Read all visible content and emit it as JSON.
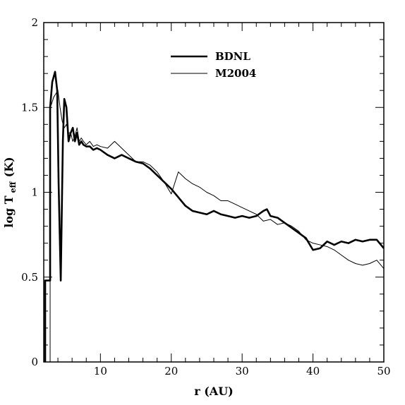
{
  "chart_data": {
    "type": "line",
    "title": "",
    "xlabel": "r (AU)",
    "ylabel_main": "log T",
    "ylabel_sub": "eff",
    "ylabel_unit": "(K)",
    "xlim": [
      2,
      50
    ],
    "ylim": [
      0,
      2
    ],
    "x_ticks": [
      10,
      20,
      30,
      40,
      50
    ],
    "y_ticks": [
      0,
      0.5,
      1,
      1.5,
      2
    ],
    "y_tick_labels": [
      "0",
      "0.5",
      "1",
      "1.5",
      "2"
    ],
    "x_minor_step": 2,
    "y_minor_step": 0.1,
    "grid": false,
    "legend_position": "top-center",
    "series": [
      {
        "name": "BDNL",
        "color": "#000000",
        "weight": "thick",
        "x": [
          2.0,
          2.2,
          2.2,
          2.9,
          2.9,
          3.2,
          3.6,
          3.9,
          4.1,
          4.4,
          4.7,
          4.9,
          5.2,
          5.5,
          5.8,
          6.1,
          6.4,
          6.7,
          7.0,
          7.3,
          7.6,
          8.0,
          8.5,
          9.0,
          9.5,
          10,
          11,
          12,
          13,
          14,
          15,
          16,
          17,
          18,
          19,
          20,
          21,
          22,
          23,
          24,
          25,
          26,
          27,
          28,
          29,
          30,
          31,
          32,
          33,
          33.5,
          34,
          35,
          36,
          37,
          38,
          39,
          40,
          41,
          42,
          43,
          44,
          45,
          46,
          47,
          48,
          49,
          50
        ],
        "y": [
          0.0,
          0.0,
          0.48,
          0.48,
          1.5,
          1.65,
          1.71,
          1.6,
          1.05,
          0.48,
          1.3,
          1.55,
          1.5,
          1.3,
          1.35,
          1.38,
          1.3,
          1.35,
          1.28,
          1.3,
          1.28,
          1.27,
          1.27,
          1.25,
          1.26,
          1.25,
          1.22,
          1.2,
          1.22,
          1.2,
          1.18,
          1.17,
          1.14,
          1.1,
          1.06,
          1.02,
          0.97,
          0.92,
          0.89,
          0.88,
          0.87,
          0.89,
          0.87,
          0.86,
          0.85,
          0.86,
          0.85,
          0.86,
          0.89,
          0.9,
          0.86,
          0.85,
          0.82,
          0.79,
          0.76,
          0.73,
          0.66,
          0.67,
          0.71,
          0.69,
          0.71,
          0.7,
          0.72,
          0.71,
          0.72,
          0.72,
          0.67
        ]
      },
      {
        "name": "M2004",
        "color": "#000000",
        "weight": "thin",
        "x": [
          2.0,
          2.4,
          2.4,
          2.9,
          2.9,
          3.1,
          3.4,
          3.7,
          4.0,
          4.3,
          4.6,
          4.9,
          5.2,
          5.5,
          5.8,
          6.1,
          6.4,
          6.7,
          7.0,
          7.3,
          7.6,
          8.0,
          8.5,
          9.0,
          9.5,
          10,
          11,
          12,
          12.5,
          13,
          14,
          15,
          16,
          17,
          18,
          19,
          20,
          21,
          22,
          23,
          24,
          25,
          26,
          27,
          28,
          29,
          30,
          31,
          32,
          33,
          34,
          35,
          36,
          37,
          38,
          39,
          40,
          41,
          42,
          43,
          44,
          45,
          46,
          47,
          48,
          49,
          50
        ],
        "y": [
          0.0,
          0.0,
          0.0,
          0.0,
          1.5,
          1.52,
          1.56,
          1.58,
          1.6,
          1.5,
          1.42,
          1.38,
          1.4,
          1.35,
          1.35,
          1.3,
          1.33,
          1.38,
          1.3,
          1.32,
          1.3,
          1.28,
          1.3,
          1.27,
          1.28,
          1.27,
          1.26,
          1.3,
          1.28,
          1.26,
          1.22,
          1.18,
          1.18,
          1.16,
          1.12,
          1.06,
          0.99,
          1.12,
          1.08,
          1.05,
          1.03,
          1.0,
          0.98,
          0.95,
          0.95,
          0.93,
          0.91,
          0.89,
          0.87,
          0.83,
          0.84,
          0.81,
          0.82,
          0.8,
          0.77,
          0.72,
          0.7,
          0.69,
          0.68,
          0.66,
          0.63,
          0.6,
          0.58,
          0.57,
          0.58,
          0.6,
          0.55
        ]
      }
    ]
  }
}
